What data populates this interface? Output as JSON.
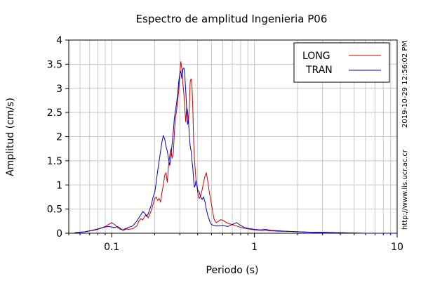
{
  "chart_data": {
    "type": "line",
    "title": "Espectro de amplitud Ingenieria P06",
    "xlabel": "Periodo (s)",
    "ylabel": "Amplitud (cm/s)",
    "xscale": "log",
    "xlim": [
      0.05,
      10
    ],
    "ylim": [
      0,
      4
    ],
    "x_ticks": [
      {
        "value": 0.1,
        "label": "0.1"
      },
      {
        "value": 1,
        "label": "1"
      },
      {
        "value": 10,
        "label": "10"
      }
    ],
    "y_ticks": [
      {
        "value": 0,
        "label": "0"
      },
      {
        "value": 0.5,
        "label": "0.5"
      },
      {
        "value": 1,
        "label": "1"
      },
      {
        "value": 1.5,
        "label": "1.5"
      },
      {
        "value": 2,
        "label": "2"
      },
      {
        "value": 2.5,
        "label": "2.5"
      },
      {
        "value": 3,
        "label": "3"
      },
      {
        "value": 3.5,
        "label": "3.5"
      },
      {
        "value": 4,
        "label": "4"
      }
    ],
    "grid": true,
    "legend_position": "top-right",
    "side_text": [
      "2019-10-29 12:56:02 PM",
      "http://www.lis.ucr.ac.cr"
    ],
    "series": [
      {
        "name": "LONG",
        "color": "#cc0000",
        "points": [
          [
            0.055,
            0.01
          ],
          [
            0.06,
            0.02
          ],
          [
            0.065,
            0.03
          ],
          [
            0.07,
            0.05
          ],
          [
            0.075,
            0.06
          ],
          [
            0.08,
            0.08
          ],
          [
            0.085,
            0.11
          ],
          [
            0.09,
            0.14
          ],
          [
            0.095,
            0.18
          ],
          [
            0.1,
            0.22
          ],
          [
            0.105,
            0.18
          ],
          [
            0.11,
            0.12
          ],
          [
            0.115,
            0.08
          ],
          [
            0.12,
            0.07
          ],
          [
            0.125,
            0.1
          ],
          [
            0.13,
            0.08
          ],
          [
            0.14,
            0.09
          ],
          [
            0.15,
            0.15
          ],
          [
            0.155,
            0.25
          ],
          [
            0.16,
            0.3
          ],
          [
            0.165,
            0.28
          ],
          [
            0.17,
            0.35
          ],
          [
            0.175,
            0.38
          ],
          [
            0.18,
            0.32
          ],
          [
            0.185,
            0.4
          ],
          [
            0.19,
            0.48
          ],
          [
            0.195,
            0.6
          ],
          [
            0.2,
            0.72
          ],
          [
            0.205,
            0.75
          ],
          [
            0.21,
            0.68
          ],
          [
            0.215,
            0.72
          ],
          [
            0.22,
            0.65
          ],
          [
            0.225,
            0.85
          ],
          [
            0.23,
            1.0
          ],
          [
            0.235,
            1.2
          ],
          [
            0.24,
            1.25
          ],
          [
            0.245,
            1.05
          ],
          [
            0.25,
            1.4
          ],
          [
            0.255,
            1.6
          ],
          [
            0.26,
            1.75
          ],
          [
            0.265,
            1.55
          ],
          [
            0.27,
            1.65
          ],
          [
            0.275,
            2.1
          ],
          [
            0.28,
            2.4
          ],
          [
            0.285,
            2.55
          ],
          [
            0.29,
            2.75
          ],
          [
            0.295,
            2.95
          ],
          [
            0.3,
            3.3
          ],
          [
            0.305,
            3.56
          ],
          [
            0.31,
            3.4
          ],
          [
            0.315,
            3.1
          ],
          [
            0.32,
            2.9
          ],
          [
            0.325,
            2.6
          ],
          [
            0.33,
            2.3
          ],
          [
            0.335,
            2.6
          ],
          [
            0.34,
            2.55
          ],
          [
            0.345,
            2.3
          ],
          [
            0.35,
            2.65
          ],
          [
            0.355,
            3.15
          ],
          [
            0.36,
            3.2
          ],
          [
            0.365,
            3.05
          ],
          [
            0.37,
            2.6
          ],
          [
            0.375,
            1.9
          ],
          [
            0.38,
            1.55
          ],
          [
            0.385,
            1.3
          ],
          [
            0.39,
            1.1
          ],
          [
            0.395,
            1.0
          ],
          [
            0.4,
            0.85
          ],
          [
            0.405,
            0.75
          ],
          [
            0.41,
            0.72
          ],
          [
            0.42,
            0.78
          ],
          [
            0.43,
            0.9
          ],
          [
            0.44,
            1.05
          ],
          [
            0.45,
            1.18
          ],
          [
            0.46,
            1.25
          ],
          [
            0.47,
            1.1
          ],
          [
            0.48,
            0.9
          ],
          [
            0.49,
            0.75
          ],
          [
            0.5,
            0.6
          ],
          [
            0.51,
            0.45
          ],
          [
            0.52,
            0.3
          ],
          [
            0.53,
            0.25
          ],
          [
            0.54,
            0.22
          ],
          [
            0.56,
            0.25
          ],
          [
            0.58,
            0.28
          ],
          [
            0.6,
            0.27
          ],
          [
            0.63,
            0.23
          ],
          [
            0.66,
            0.2
          ],
          [
            0.7,
            0.18
          ],
          [
            0.75,
            0.15
          ],
          [
            0.8,
            0.12
          ],
          [
            0.9,
            0.09
          ],
          [
            1.0,
            0.07
          ],
          [
            1.1,
            0.06
          ],
          [
            1.2,
            0.06
          ],
          [
            1.3,
            0.05
          ],
          [
            1.5,
            0.04
          ],
          [
            1.7,
            0.04
          ],
          [
            2.0,
            0.03
          ],
          [
            2.5,
            0.02
          ],
          [
            3.0,
            0.01
          ],
          [
            4.0,
            0.01
          ],
          [
            6.0,
            0.0
          ],
          [
            10.0,
            0.0
          ]
        ]
      },
      {
        "name": "TRAN",
        "color": "#0000bb",
        "points": [
          [
            0.055,
            0.01
          ],
          [
            0.06,
            0.02
          ],
          [
            0.065,
            0.03
          ],
          [
            0.07,
            0.05
          ],
          [
            0.075,
            0.07
          ],
          [
            0.08,
            0.09
          ],
          [
            0.085,
            0.11
          ],
          [
            0.09,
            0.13
          ],
          [
            0.095,
            0.14
          ],
          [
            0.1,
            0.13
          ],
          [
            0.105,
            0.12
          ],
          [
            0.11,
            0.14
          ],
          [
            0.115,
            0.1
          ],
          [
            0.12,
            0.06
          ],
          [
            0.125,
            0.08
          ],
          [
            0.13,
            0.12
          ],
          [
            0.14,
            0.15
          ],
          [
            0.15,
            0.25
          ],
          [
            0.155,
            0.32
          ],
          [
            0.16,
            0.38
          ],
          [
            0.165,
            0.45
          ],
          [
            0.17,
            0.42
          ],
          [
            0.175,
            0.35
          ],
          [
            0.18,
            0.4
          ],
          [
            0.185,
            0.5
          ],
          [
            0.19,
            0.6
          ],
          [
            0.195,
            0.75
          ],
          [
            0.2,
            0.85
          ],
          [
            0.205,
            1.05
          ],
          [
            0.21,
            1.3
          ],
          [
            0.215,
            1.5
          ],
          [
            0.22,
            1.7
          ],
          [
            0.225,
            1.9
          ],
          [
            0.23,
            2.02
          ],
          [
            0.235,
            1.95
          ],
          [
            0.24,
            1.8
          ],
          [
            0.245,
            1.7
          ],
          [
            0.25,
            1.55
          ],
          [
            0.255,
            1.4
          ],
          [
            0.26,
            1.6
          ],
          [
            0.265,
            1.85
          ],
          [
            0.27,
            2.1
          ],
          [
            0.275,
            2.4
          ],
          [
            0.28,
            2.55
          ],
          [
            0.285,
            2.7
          ],
          [
            0.29,
            2.9
          ],
          [
            0.295,
            3.15
          ],
          [
            0.3,
            3.3
          ],
          [
            0.305,
            3.35
          ],
          [
            0.31,
            3.2
          ],
          [
            0.315,
            3.4
          ],
          [
            0.32,
            3.42
          ],
          [
            0.325,
            3.3
          ],
          [
            0.33,
            2.95
          ],
          [
            0.335,
            2.6
          ],
          [
            0.34,
            2.25
          ],
          [
            0.345,
            2.35
          ],
          [
            0.35,
            2.0
          ],
          [
            0.355,
            1.8
          ],
          [
            0.36,
            1.7
          ],
          [
            0.365,
            1.5
          ],
          [
            0.37,
            1.35
          ],
          [
            0.375,
            1.1
          ],
          [
            0.38,
            0.95
          ],
          [
            0.385,
            1.0
          ],
          [
            0.39,
            1.1
          ],
          [
            0.395,
            1.0
          ],
          [
            0.4,
            0.9
          ],
          [
            0.41,
            0.85
          ],
          [
            0.42,
            0.75
          ],
          [
            0.43,
            0.7
          ],
          [
            0.44,
            0.75
          ],
          [
            0.45,
            0.65
          ],
          [
            0.46,
            0.5
          ],
          [
            0.47,
            0.38
          ],
          [
            0.48,
            0.3
          ],
          [
            0.49,
            0.22
          ],
          [
            0.5,
            0.18
          ],
          [
            0.52,
            0.16
          ],
          [
            0.55,
            0.15
          ],
          [
            0.6,
            0.16
          ],
          [
            0.65,
            0.14
          ],
          [
            0.7,
            0.18
          ],
          [
            0.75,
            0.22
          ],
          [
            0.8,
            0.16
          ],
          [
            0.85,
            0.12
          ],
          [
            0.9,
            0.1
          ],
          [
            1.0,
            0.08
          ],
          [
            1.1,
            0.07
          ],
          [
            1.2,
            0.08
          ],
          [
            1.3,
            0.06
          ],
          [
            1.5,
            0.05
          ],
          [
            1.7,
            0.04
          ],
          [
            2.0,
            0.03
          ],
          [
            2.5,
            0.02
          ],
          [
            3.0,
            0.02
          ],
          [
            4.0,
            0.01
          ],
          [
            6.0,
            0.0
          ],
          [
            10.0,
            0.0
          ]
        ]
      }
    ]
  }
}
